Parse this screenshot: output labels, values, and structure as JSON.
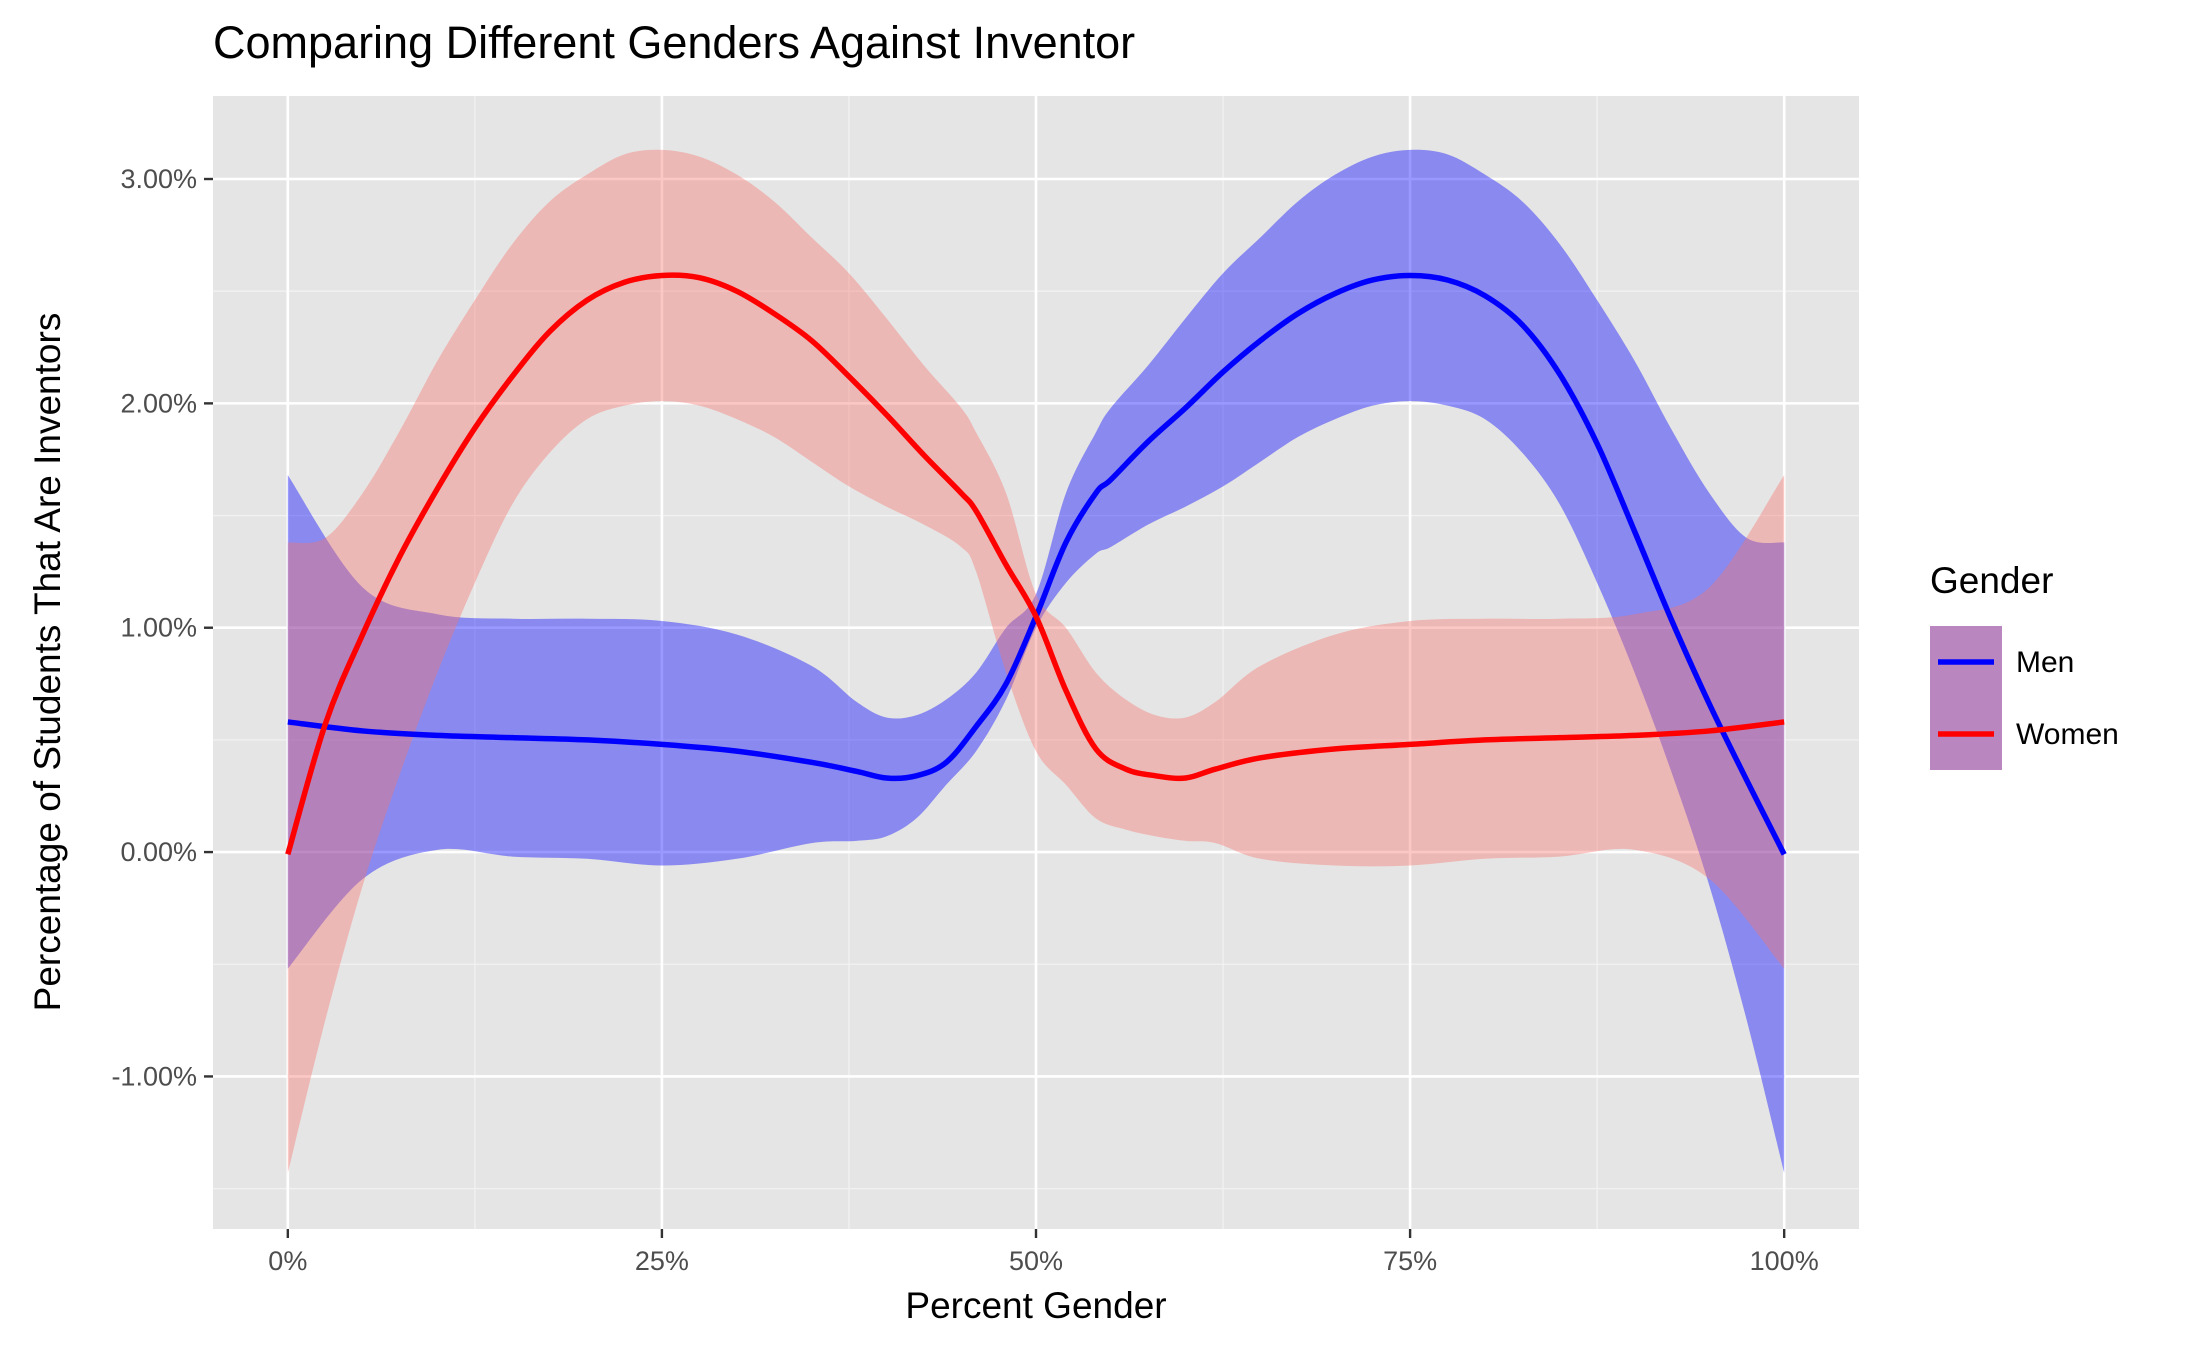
{
  "chart_data": {
    "type": "line",
    "title": "Comparing Different Genders Against Inventor",
    "xlabel": "Percent Gender",
    "ylabel": "Percentage of Students That Are Inventors",
    "xlim": [
      -0.05,
      1.05
    ],
    "ylim": [
      -0.0168,
      0.0337
    ],
    "x_ticks": [
      {
        "value": 0,
        "label": "0%"
      },
      {
        "value": 0.25,
        "label": "25%"
      },
      {
        "value": 0.5,
        "label": "50%"
      },
      {
        "value": 0.75,
        "label": "75%"
      },
      {
        "value": 1.0,
        "label": "100%"
      }
    ],
    "y_ticks": [
      {
        "value": -0.01,
        "label": "-1.00%"
      },
      {
        "value": 0.0,
        "label": "0.00%"
      },
      {
        "value": 0.01,
        "label": "1.00%"
      },
      {
        "value": 0.02,
        "label": "2.00%"
      },
      {
        "value": 0.03,
        "label": "3.00%"
      }
    ],
    "grid": true,
    "legend": {
      "title": "Gender",
      "placement": "right"
    },
    "series": [
      {
        "name": "Men",
        "color": "#0000ff",
        "band_color": "#0000ff",
        "x": [
          0.0,
          0.05,
          0.1,
          0.15,
          0.2,
          0.25,
          0.3,
          0.35,
          0.38,
          0.4,
          0.42,
          0.44,
          0.46,
          0.48,
          0.5,
          0.52,
          0.54,
          0.55,
          0.575,
          0.6,
          0.625,
          0.65,
          0.675,
          0.7,
          0.725,
          0.75,
          0.775,
          0.8,
          0.825,
          0.85,
          0.875,
          0.9,
          0.925,
          0.95,
          0.975,
          1.0
        ],
        "y": [
          0.0058,
          0.0054,
          0.0052,
          0.0051,
          0.005,
          0.0048,
          0.0045,
          0.004,
          0.0036,
          0.0033,
          0.0034,
          0.004,
          0.0056,
          0.0075,
          0.0105,
          0.0138,
          0.016,
          0.0166,
          0.0183,
          0.0198,
          0.0214,
          0.0228,
          0.024,
          0.0249,
          0.0255,
          0.0257,
          0.0255,
          0.0248,
          0.0235,
          0.0213,
          0.0182,
          0.0143,
          0.0103,
          0.0066,
          0.0032,
          -0.0001
        ],
        "lower": [
          -0.0052,
          -0.0012,
          0.0001,
          -0.0002,
          -0.0003,
          -0.0006,
          -0.0003,
          0.0004,
          0.0005,
          0.0007,
          0.0015,
          0.003,
          0.0045,
          0.0068,
          0.01,
          0.012,
          0.0133,
          0.0136,
          0.0146,
          0.0154,
          0.0163,
          0.0174,
          0.0185,
          0.0193,
          0.0199,
          0.0201,
          0.0199,
          0.0193,
          0.0178,
          0.0155,
          0.012,
          0.008,
          0.0035,
          -0.0015,
          -0.0075,
          -0.0143
        ],
        "upper": [
          0.0168,
          0.0118,
          0.0106,
          0.0104,
          0.0104,
          0.0103,
          0.0097,
          0.0083,
          0.0067,
          0.006,
          0.0061,
          0.0068,
          0.008,
          0.01,
          0.0115,
          0.016,
          0.0187,
          0.0198,
          0.0217,
          0.0238,
          0.0258,
          0.0274,
          0.029,
          0.0302,
          0.031,
          0.0313,
          0.0311,
          0.0302,
          0.029,
          0.0271,
          0.0246,
          0.0219,
          0.0188,
          0.016,
          0.014,
          0.0138
        ]
      },
      {
        "name": "Women",
        "color": "#ff0000",
        "band_color": "#f8766d",
        "x": [
          0.0,
          0.025,
          0.05,
          0.075,
          0.1,
          0.125,
          0.15,
          0.175,
          0.2,
          0.225,
          0.25,
          0.275,
          0.3,
          0.325,
          0.35,
          0.375,
          0.4,
          0.425,
          0.45,
          0.46,
          0.48,
          0.5,
          0.52,
          0.54,
          0.56,
          0.58,
          0.6,
          0.62,
          0.65,
          0.7,
          0.75,
          0.8,
          0.85,
          0.9,
          0.95,
          1.0
        ],
        "y": [
          -0.0001,
          0.0057,
          0.0097,
          0.0132,
          0.0162,
          0.0189,
          0.0212,
          0.0232,
          0.0246,
          0.0254,
          0.0257,
          0.0256,
          0.025,
          0.024,
          0.0228,
          0.0212,
          0.0195,
          0.0177,
          0.016,
          0.0152,
          0.0128,
          0.0105,
          0.0072,
          0.0046,
          0.0037,
          0.0034,
          0.0033,
          0.0037,
          0.0042,
          0.0046,
          0.0048,
          0.005,
          0.0051,
          0.0052,
          0.0054,
          0.0058
        ],
        "lower": [
          -0.0143,
          -0.0075,
          -0.0015,
          0.0035,
          0.008,
          0.012,
          0.0155,
          0.0178,
          0.0193,
          0.0199,
          0.0201,
          0.0199,
          0.0193,
          0.0185,
          0.0174,
          0.0163,
          0.0154,
          0.0146,
          0.0136,
          0.0125,
          0.008,
          0.0045,
          0.003,
          0.0015,
          0.001,
          0.0007,
          0.0005,
          0.0004,
          -0.0003,
          -0.0006,
          -0.0006,
          -0.0003,
          -0.0002,
          0.0001,
          -0.0012,
          -0.0052
        ],
        "upper": [
          0.0138,
          0.014,
          0.016,
          0.0188,
          0.0219,
          0.0246,
          0.0271,
          0.029,
          0.0302,
          0.0311,
          0.0313,
          0.031,
          0.0302,
          0.029,
          0.0274,
          0.0258,
          0.0238,
          0.0217,
          0.0198,
          0.0187,
          0.016,
          0.0115,
          0.01,
          0.008,
          0.0068,
          0.0061,
          0.006,
          0.0067,
          0.0083,
          0.0097,
          0.0103,
          0.0104,
          0.0104,
          0.0106,
          0.0118,
          0.0168
        ]
      }
    ]
  }
}
